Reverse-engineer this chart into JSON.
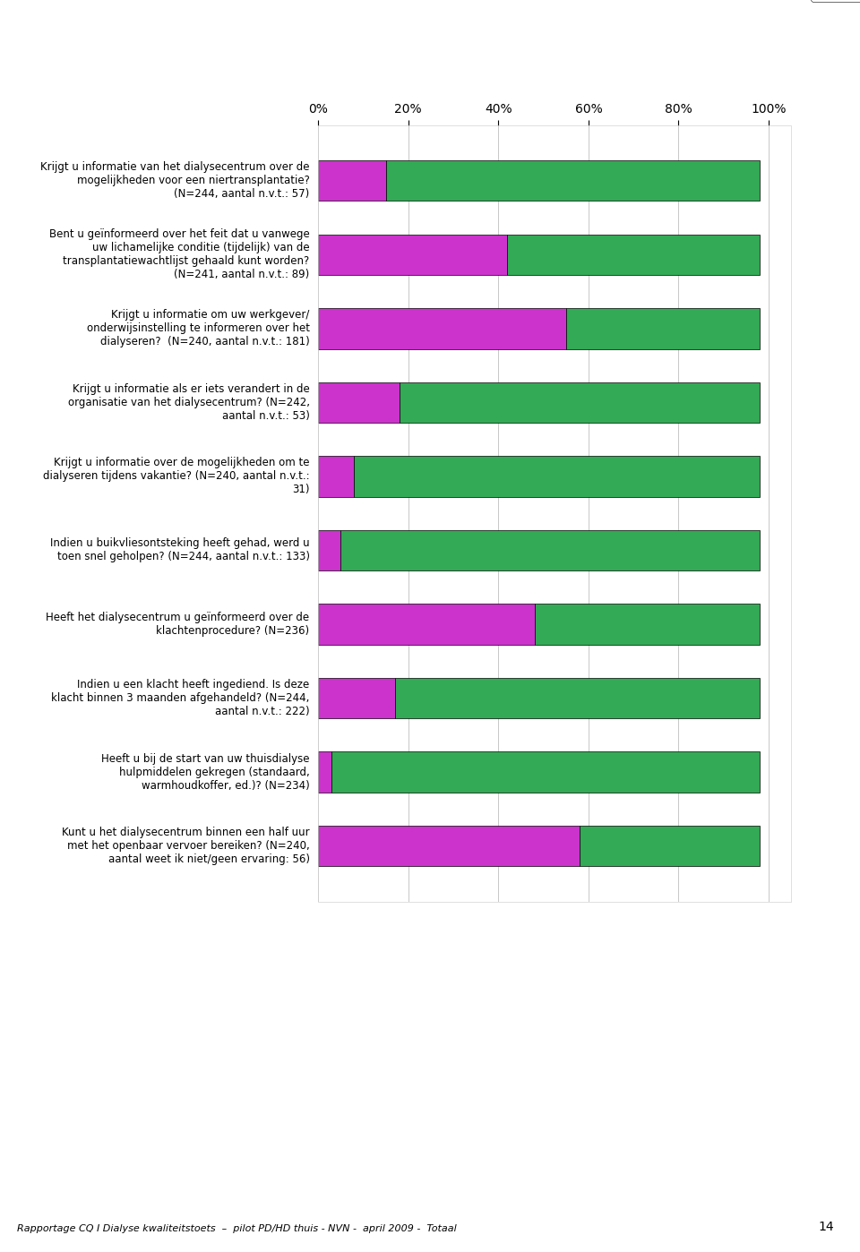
{
  "questions": [
    "Krijgt u informatie van het dialysecentrum over de\nmogelijkheden voor een niertransplantatie?\n(N=244, aantal n.v.t.: 57)",
    "Bent u geïnformeerd over het feit dat u vanwege\nuw lichamelijke conditie (tijdelijk) van de\ntransplantatiewachtlijst gehaald kunt worden?\n(N=241, aantal n.v.t.: 89)",
    "Krijgt u informatie om uw werkgever/\nonderwijsinstelling te informeren over het\ndialyseren?  (N=240, aantal n.v.t.: 181)",
    "Krijgt u informatie als er iets verandert in de\norganisatie van het dialysecentrum? (N=242,\naantal n.v.t.: 53)",
    "Krijgt u informatie over de mogelijkheden om te\ndialyseren tijdens vakantie? (N=240, aantal n.v.t.:\n31)",
    "Indien u buikvliesontsteking heeft gehad, werd u\ntoen snel geholpen? (N=244, aantal n.v.t.: 133)",
    "Heeft het dialysecentrum u geïnformeerd over de\nklachtenprocedure? (N=236)",
    "Indien u een klacht heeft ingediend. Is deze\nklacht binnen 3 maanden afgehandeld? (N=244,\naantal n.v.t.: 222)",
    "Heeft u bij de start van uw thuisdialyse\nhulpmiddelen gekregen (standaard,\nwarmhoudkoffer, ed.)? (N=234)",
    "Kunt u het dialysecentrum binnen een half uur\nmet het openbaar vervoer bereiken? (N=240,\naantal weet ik niet/geen ervaring: 56)"
  ],
  "nee_values": [
    15,
    42,
    55,
    18,
    8,
    5,
    48,
    17,
    3,
    58
  ],
  "ja_values": [
    83,
    56,
    43,
    80,
    90,
    93,
    50,
    81,
    95,
    40
  ],
  "nee_color": "#CC33CC",
  "ja_color": "#33AA55",
  "background_color": "#FFFFFF",
  "footer": "Rapportage CQ I Dialyse kwaliteitstoets  –  pilot PD/HD thuis - NVN -  april 2009 -  Totaal",
  "page_number": "14",
  "bar_height": 0.55,
  "xlim": [
    0,
    105
  ],
  "xticks": [
    0,
    20,
    40,
    60,
    80,
    100
  ],
  "xticklabels": [
    "0%",
    "20%",
    "40%",
    "60%",
    "80%",
    "100%"
  ]
}
